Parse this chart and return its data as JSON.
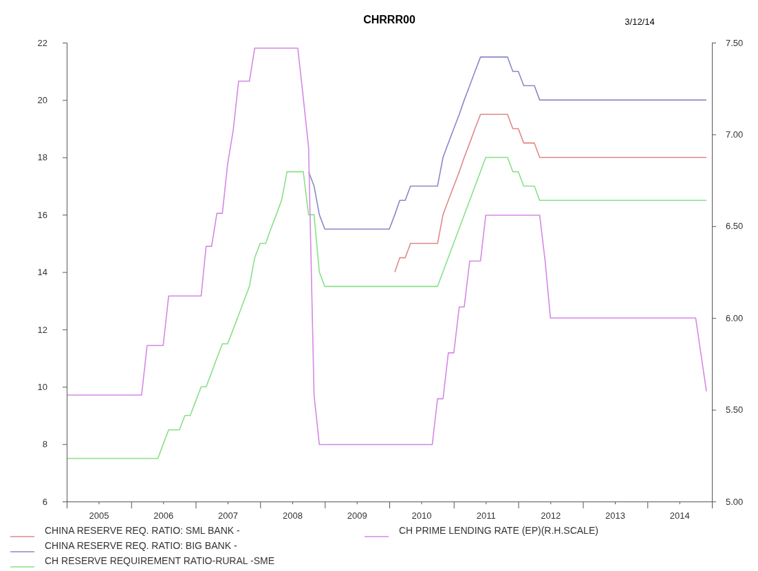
{
  "chart_data": {
    "type": "line",
    "title": "CHRRR00",
    "annotations": [
      "3/12/14"
    ],
    "xlim": [
      "2005-01",
      "2015-01"
    ],
    "xticks": [
      {
        "value": "2005-01",
        "label": null
      },
      {
        "value": "2005-07",
        "label": "2005"
      },
      {
        "value": "2006-01",
        "label": null
      },
      {
        "value": "2006-07",
        "label": "2006"
      },
      {
        "value": "2007-01",
        "label": null
      },
      {
        "value": "2007-07",
        "label": "2007"
      },
      {
        "value": "2008-01",
        "label": null
      },
      {
        "value": "2008-07",
        "label": "2008"
      },
      {
        "value": "2009-01",
        "label": null
      },
      {
        "value": "2009-07",
        "label": "2009"
      },
      {
        "value": "2010-01",
        "label": null
      },
      {
        "value": "2010-07",
        "label": "2010"
      },
      {
        "value": "2011-01",
        "label": null
      },
      {
        "value": "2011-07",
        "label": "2011"
      },
      {
        "value": "2012-01",
        "label": null
      },
      {
        "value": "2012-07",
        "label": "2012"
      },
      {
        "value": "2013-01",
        "label": null
      },
      {
        "value": "2013-07",
        "label": "2013"
      },
      {
        "value": "2014-01",
        "label": null
      },
      {
        "value": "2014-07",
        "label": "2014"
      },
      {
        "value": "2015-01",
        "label": null
      }
    ],
    "ylim": [
      6,
      22
    ],
    "yticks": [
      6,
      8,
      10,
      12,
      14,
      16,
      18,
      20,
      22
    ],
    "y2lim": [
      5,
      7.5
    ],
    "y2ticks": [
      {
        "value": 5,
        "label": "5.00"
      },
      {
        "value": 5.5,
        "label": "5.50"
      },
      {
        "value": 6,
        "label": "6.00"
      },
      {
        "value": 6.5,
        "label": "6.50"
      },
      {
        "value": 7,
        "label": "7.00"
      },
      {
        "value": 7.5,
        "label": "7.50"
      }
    ],
    "legend": "bottom",
    "series": [
      {
        "name": "CHINA RESERVE REQ. RATIO: SML BANK -",
        "color": "#e08888",
        "x": [
          "2010-02",
          "2010-03",
          "2010-04",
          "2010-05",
          "2010-10",
          "2010-11",
          "2010-12",
          "2011-01",
          "2011-02",
          "2011-03",
          "2011-04",
          "2011-05",
          "2011-06",
          "2011-11",
          "2011-12",
          "2012-01",
          "2012-02",
          "2012-04",
          "2012-05",
          "2014-12"
        ],
        "values": [
          14,
          14.5,
          14.5,
          15,
          15,
          16,
          16.5,
          17,
          17.5,
          18,
          18.5,
          19,
          19.5,
          19.5,
          19,
          19,
          18.5,
          18.5,
          18,
          18
        ]
      },
      {
        "name": "CHINA RESERVE REQ. RATIO: BIG BANK -",
        "color": "#8888c8",
        "x": [
          "2008-10",
          "2008-11",
          "2008-12",
          "2009-01",
          "2010-01",
          "2010-02",
          "2010-03",
          "2010-04",
          "2010-05",
          "2010-10",
          "2010-11",
          "2010-12",
          "2011-01",
          "2011-02",
          "2011-03",
          "2011-04",
          "2011-05",
          "2011-06",
          "2011-11",
          "2011-12",
          "2012-01",
          "2012-02",
          "2012-04",
          "2012-05",
          "2014-12"
        ],
        "values": [
          17.5,
          17,
          16,
          15.5,
          15.5,
          16,
          16.5,
          16.5,
          17,
          17,
          18,
          18.5,
          19,
          19.5,
          20,
          20.5,
          21,
          21.5,
          21.5,
          21,
          21,
          20.5,
          20.5,
          20,
          20
        ]
      },
      {
        "name": "CH RESERVE REQUIREMENT RATIO-RURAL -SME",
        "color": "#88e088",
        "x": [
          "2005-01",
          "2006-06",
          "2006-07",
          "2006-08",
          "2006-10",
          "2006-11",
          "2006-12",
          "2007-01",
          "2007-02",
          "2007-03",
          "2007-04",
          "2007-05",
          "2007-06",
          "2007-07",
          "2007-08",
          "2007-09",
          "2007-10",
          "2007-11",
          "2007-12",
          "2008-01",
          "2008-02",
          "2008-03",
          "2008-04",
          "2008-05",
          "2008-06",
          "2008-09",
          "2008-10",
          "2008-11",
          "2008-12",
          "2009-01",
          "2010-10",
          "2011-07",
          "2011-11",
          "2011-12",
          "2012-01",
          "2012-02",
          "2012-04",
          "2012-05",
          "2014-12"
        ],
        "values": [
          7.5,
          7.5,
          8,
          8.5,
          8.5,
          9,
          9,
          9.5,
          10,
          10,
          10.5,
          11,
          11.5,
          11.5,
          12,
          12.5,
          13,
          13.5,
          14.5,
          15,
          15,
          15.5,
          16,
          16.5,
          17.5,
          17.5,
          16,
          16,
          14,
          13.5,
          13.5,
          18,
          18,
          17.5,
          17.5,
          17,
          17,
          16.5,
          16.5
        ]
      },
      {
        "name": "CH PRIME LENDING RATE (EP)(R.H.SCALE)",
        "color": "#d488e4",
        "axis": "y2",
        "x": [
          "2005-01",
          "2006-03",
          "2006-04",
          "2006-07",
          "2006-08",
          "2007-02",
          "2007-03",
          "2007-04",
          "2007-05",
          "2007-06",
          "2007-07",
          "2007-08",
          "2007-09",
          "2007-11",
          "2007-12",
          "2008-08",
          "2008-09",
          "2008-10",
          "2008-11",
          "2008-12",
          "2010-09",
          "2010-10",
          "2010-11",
          "2010-12",
          "2011-01",
          "2011-02",
          "2011-03",
          "2011-04",
          "2011-06",
          "2011-07",
          "2012-05",
          "2012-06",
          "2012-07",
          "2014-10",
          "2014-12"
        ],
        "values": [
          5.58,
          5.58,
          5.85,
          5.85,
          6.12,
          6.12,
          6.39,
          6.39,
          6.57,
          6.57,
          6.84,
          7.02,
          7.29,
          7.29,
          7.47,
          7.47,
          7.2,
          6.93,
          5.58,
          5.31,
          5.31,
          5.56,
          5.56,
          5.81,
          5.81,
          6.06,
          6.06,
          6.31,
          6.31,
          6.56,
          6.56,
          6.31,
          6,
          6,
          5.6
        ]
      }
    ]
  }
}
